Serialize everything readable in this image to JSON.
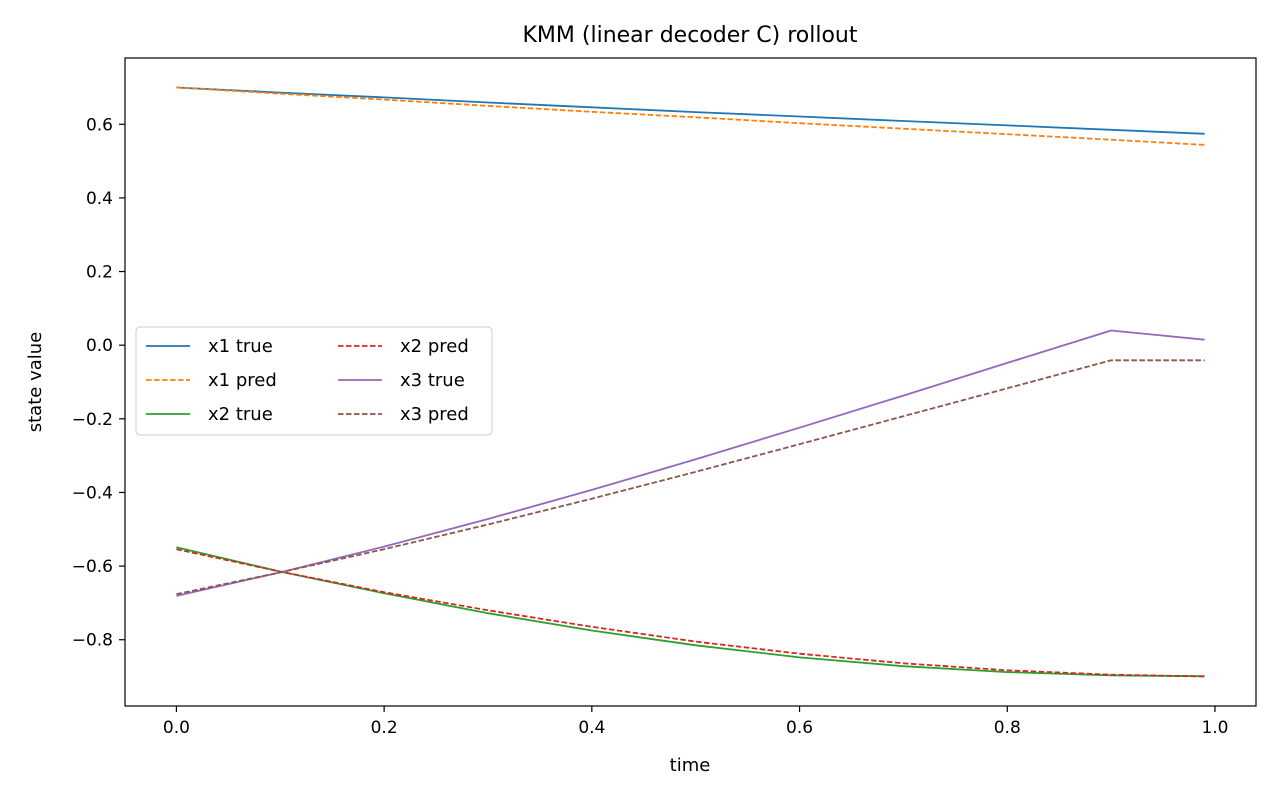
{
  "chart_data": {
    "type": "line",
    "title": "KMM (linear decoder C) rollout",
    "xlabel": "time",
    "ylabel": "state value",
    "xlim": [
      -0.0495,
      1.0395
    ],
    "ylim": [
      -0.98,
      0.78
    ],
    "xticks": [
      0.0,
      0.2,
      0.4,
      0.6,
      0.8,
      1.0
    ],
    "xtick_labels": [
      "0.0",
      "0.2",
      "0.4",
      "0.6",
      "0.8",
      "1.0"
    ],
    "yticks": [
      0.6,
      0.4,
      0.2,
      0.0,
      -0.2,
      -0.4,
      -0.6,
      -0.8
    ],
    "ytick_labels": [
      "0.6",
      "0.4",
      "0.2",
      "0.0",
      "−0.2",
      "−0.4",
      "−0.6",
      "−0.8"
    ],
    "grid": false,
    "legend_position": "center-left",
    "legend_columns": 2,
    "x": [
      0.0,
      0.1,
      0.2,
      0.3,
      0.4,
      0.5,
      0.6,
      0.7,
      0.8,
      0.9,
      0.99
    ],
    "series": [
      {
        "name": "x1 true",
        "color": "#1f77b4",
        "style": "solid",
        "values": [
          0.7,
          0.686,
          0.673,
          0.659,
          0.646,
          0.633,
          0.621,
          0.609,
          0.597,
          0.585,
          0.574
        ]
      },
      {
        "name": "x1 pred",
        "color": "#ff7f0e",
        "style": "dashed",
        "values": [
          0.7,
          0.683,
          0.667,
          0.65,
          0.634,
          0.619,
          0.603,
          0.588,
          0.573,
          0.558,
          0.544
        ]
      },
      {
        "name": "x2 true",
        "color": "#2ca02c",
        "style": "solid",
        "values": [
          -0.549,
          -0.615,
          -0.674,
          -0.728,
          -0.775,
          -0.815,
          -0.848,
          -0.872,
          -0.888,
          -0.897,
          -0.899
        ]
      },
      {
        "name": "x2 pred",
        "color": "#d62728",
        "style": "dashed",
        "values": [
          -0.554,
          -0.615,
          -0.671,
          -0.72,
          -0.765,
          -0.805,
          -0.838,
          -0.864,
          -0.883,
          -0.895,
          -0.9
        ]
      },
      {
        "name": "x3 true",
        "color": "#9467bd",
        "style": "solid",
        "values": [
          -0.681,
          -0.617,
          -0.547,
          -0.472,
          -0.393,
          -0.31,
          -0.224,
          -0.137,
          -0.048,
          0.04,
          0.015
        ]
      },
      {
        "name": "x3 pred",
        "color": "#8c564b",
        "style": "dashed",
        "values": [
          -0.676,
          -0.617,
          -0.554,
          -0.487,
          -0.417,
          -0.344,
          -0.269,
          -0.193,
          -0.117,
          -0.041,
          -0.041
        ]
      }
    ]
  }
}
